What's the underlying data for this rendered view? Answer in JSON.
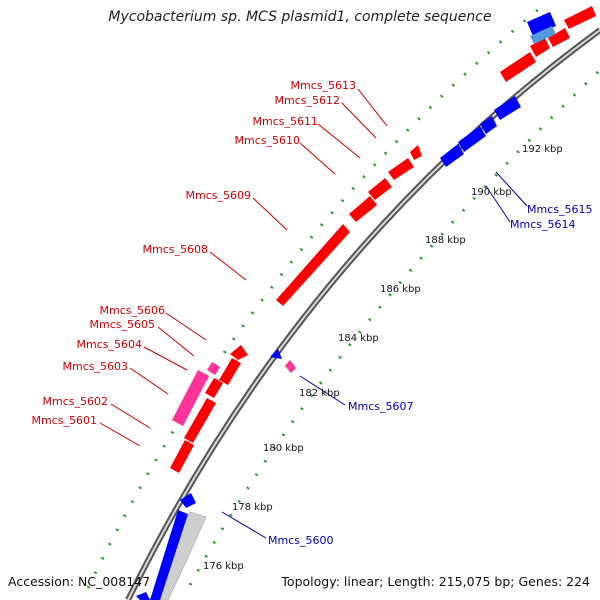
{
  "title": "Mycobacterium sp. MCS plasmid1, complete sequence",
  "accession_label": "Accession: NC_008147",
  "summary_label": "Topology: linear; Length: 215,075 bp; Genes: 224",
  "colors": {
    "forward_gene": "#ff0000",
    "reverse_gene": "#0000ff",
    "forward_rna_or_pseudo": "#ff3399",
    "label_forward": "#cc0000",
    "label_reverse": "#0000aa",
    "backbone": "#888888",
    "tick_dots": "#2a9d2a"
  },
  "scale_labels": [
    "176 kbp",
    "178 kbp",
    "180 kbp",
    "182 kbp",
    "184 kbp",
    "186 kbp",
    "188 kbp",
    "190 kbp",
    "192 kbp"
  ],
  "forward_gene_labels": [
    "Mmcs_5613",
    "Mmcs_5612",
    "Mmcs_5611",
    "Mmcs_5610",
    "Mmcs_5609",
    "Mmcs_5608",
    "Mmcs_5606",
    "Mmcs_5605",
    "Mmcs_5604",
    "Mmcs_5603",
    "Mmcs_5602",
    "Mmcs_5601"
  ],
  "reverse_gene_labels": [
    "Mmcs_5615",
    "Mmcs_5614",
    "Mmcs_5607",
    "Mmcs_5600"
  ]
}
